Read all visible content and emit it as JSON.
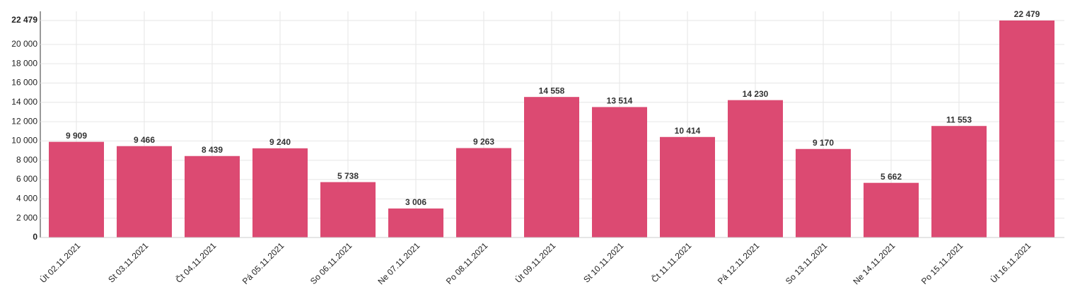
{
  "chart_data": {
    "type": "bar",
    "categories": [
      "Út 02.11.2021",
      "St 03.11.2021",
      "Čt 04.11.2021",
      "Pá 05.11.2021",
      "So 06.11.2021",
      "Ne 07.11.2021",
      "Po 08.11.2021",
      "Út 09.11.2021",
      "St 10.11.2021",
      "Čt 11.11.2021",
      "Pá 12.11.2021",
      "So 13.11.2021",
      "Ne 14.11.2021",
      "Po 15.11.2021",
      "Út 16.11.2021"
    ],
    "values": [
      9909,
      9466,
      8439,
      9240,
      5738,
      3006,
      9263,
      14558,
      13514,
      10414,
      14230,
      9170,
      5662,
      11553,
      22479
    ],
    "value_labels": [
      "9 909",
      "9 466",
      "8 439",
      "9 240",
      "5 738",
      "3 006",
      "9 263",
      "14 558",
      "13 514",
      "10 414",
      "14 230",
      "9 170",
      "5 662",
      "11 553",
      "22 479"
    ],
    "color": "#dc4a72",
    "ylim": [
      0,
      22479
    ],
    "yticks": [
      0,
      {
        "value": 2000,
        "label": "2 000"
      },
      {
        "value": 4000,
        "label": "4 000"
      },
      {
        "value": 6000,
        "label": "6 000"
      },
      {
        "value": 8000,
        "label": "8 000"
      },
      {
        "value": 10000,
        "label": "10 000"
      },
      {
        "value": 12000,
        "label": "12 000"
      },
      {
        "value": 14000,
        "label": "14 000"
      },
      {
        "value": 16000,
        "label": "16 000"
      },
      {
        "value": 18000,
        "label": "18 000"
      },
      {
        "value": 20000,
        "label": "20 000"
      },
      {
        "value": 22479,
        "label": "22 479"
      }
    ],
    "grid": true
  }
}
